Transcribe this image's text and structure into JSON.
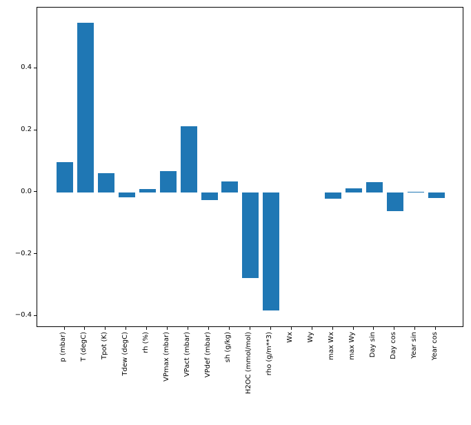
{
  "figure": {
    "background": "#ffffff",
    "border_color": "#000000",
    "text_color": "#000000"
  },
  "chart_data": {
    "type": "bar",
    "title": "",
    "xlabel": "",
    "ylabel": "",
    "grid": false,
    "legend": null,
    "bar_color": "#1f77b4",
    "categories": [
      "p (mbar)",
      "T (degC)",
      "Tpot (K)",
      "Tdew (degC)",
      "rh (%)",
      "VPmax (mbar)",
      "VPact (mbar)",
      "VPdef (mbar)",
      "sh (g/kg)",
      "H2OC (mmol/mol)",
      "rho (g/m**3)",
      "Wx",
      "Wy",
      "max Wx",
      "max Wy",
      "Day sin",
      "Day cos",
      "Year sin",
      "Year cos"
    ],
    "values": [
      0.097,
      0.548,
      0.063,
      -0.016,
      0.012,
      0.068,
      0.213,
      -0.024,
      0.036,
      -0.276,
      -0.381,
      0.0,
      0.0,
      -0.021,
      0.013,
      0.033,
      -0.06,
      0.002,
      -0.018
    ],
    "ylim": [
      -0.437,
      0.597
    ],
    "y_ticks": [
      {
        "value": 0.4,
        "label": "0.4"
      },
      {
        "value": 0.2,
        "label": "0.2"
      },
      {
        "value": 0.0,
        "label": "0.0"
      },
      {
        "value": -0.2,
        "label": "−0.2"
      },
      {
        "value": -0.4,
        "label": "−0.4"
      }
    ],
    "x_tick_rotation_deg": 90
  }
}
